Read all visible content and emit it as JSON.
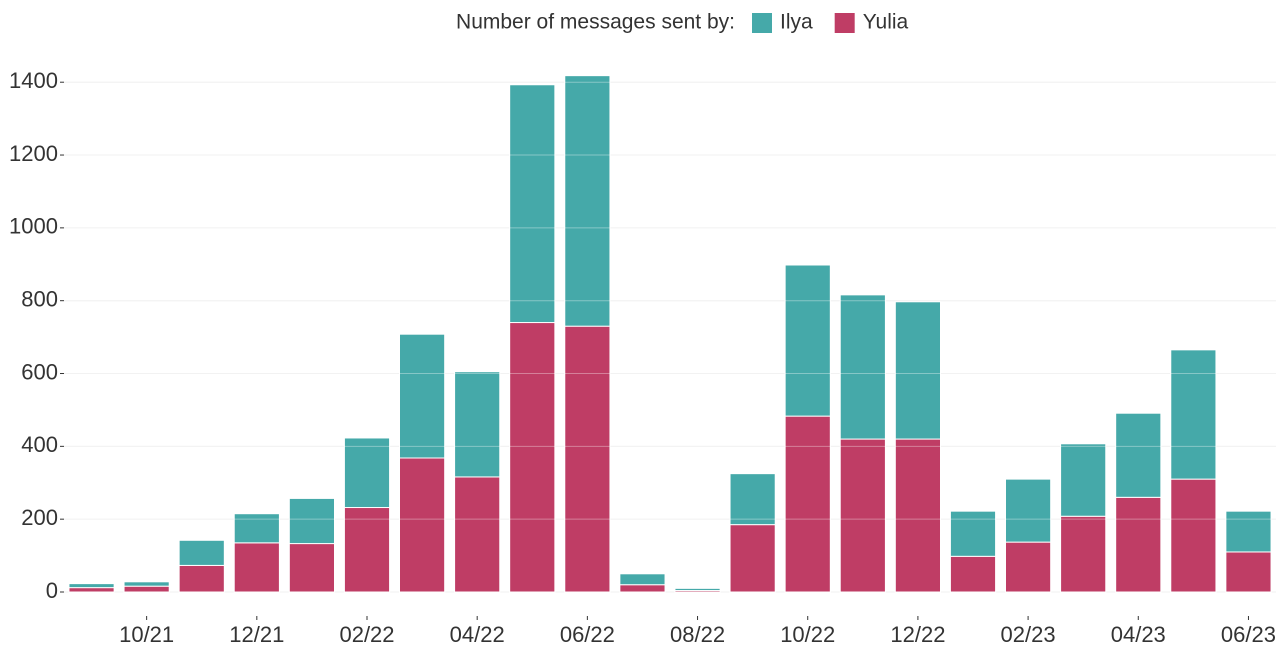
{
  "chart_data": {
    "type": "stacked_bar",
    "legend_title": "Number of messages sent by:",
    "categories": [
      null,
      "10/21",
      null,
      "12/21",
      null,
      "02/22",
      null,
      "04/22",
      null,
      "06/22",
      null,
      "08/22",
      null,
      "10/22",
      null,
      "12/22",
      null,
      "02/23",
      null,
      "04/23",
      null,
      "06/23"
    ],
    "series": [
      {
        "name": "Ilya",
        "color": "#45a9a9",
        "values": [
          11,
          12,
          69,
          80,
          124,
          191,
          340,
          289,
          653,
          688,
          30,
          6,
          140,
          415,
          396,
          377,
          124,
          173,
          199,
          231,
          355,
          112
        ]
      },
      {
        "name": "Yulia",
        "color": "#bf3d65",
        "values": [
          12,
          16,
          73,
          135,
          133,
          232,
          368,
          316,
          740,
          730,
          20,
          4,
          185,
          483,
          420,
          420,
          98,
          137,
          208,
          260,
          310,
          110
        ]
      }
    ],
    "stack_order": [
      "Yulia",
      "Ilya"
    ],
    "ylim": [
      0,
      1450
    ],
    "yticks": [
      0,
      200,
      400,
      600,
      800,
      1000,
      1200,
      1400
    ],
    "grid": true,
    "legend": "top"
  }
}
